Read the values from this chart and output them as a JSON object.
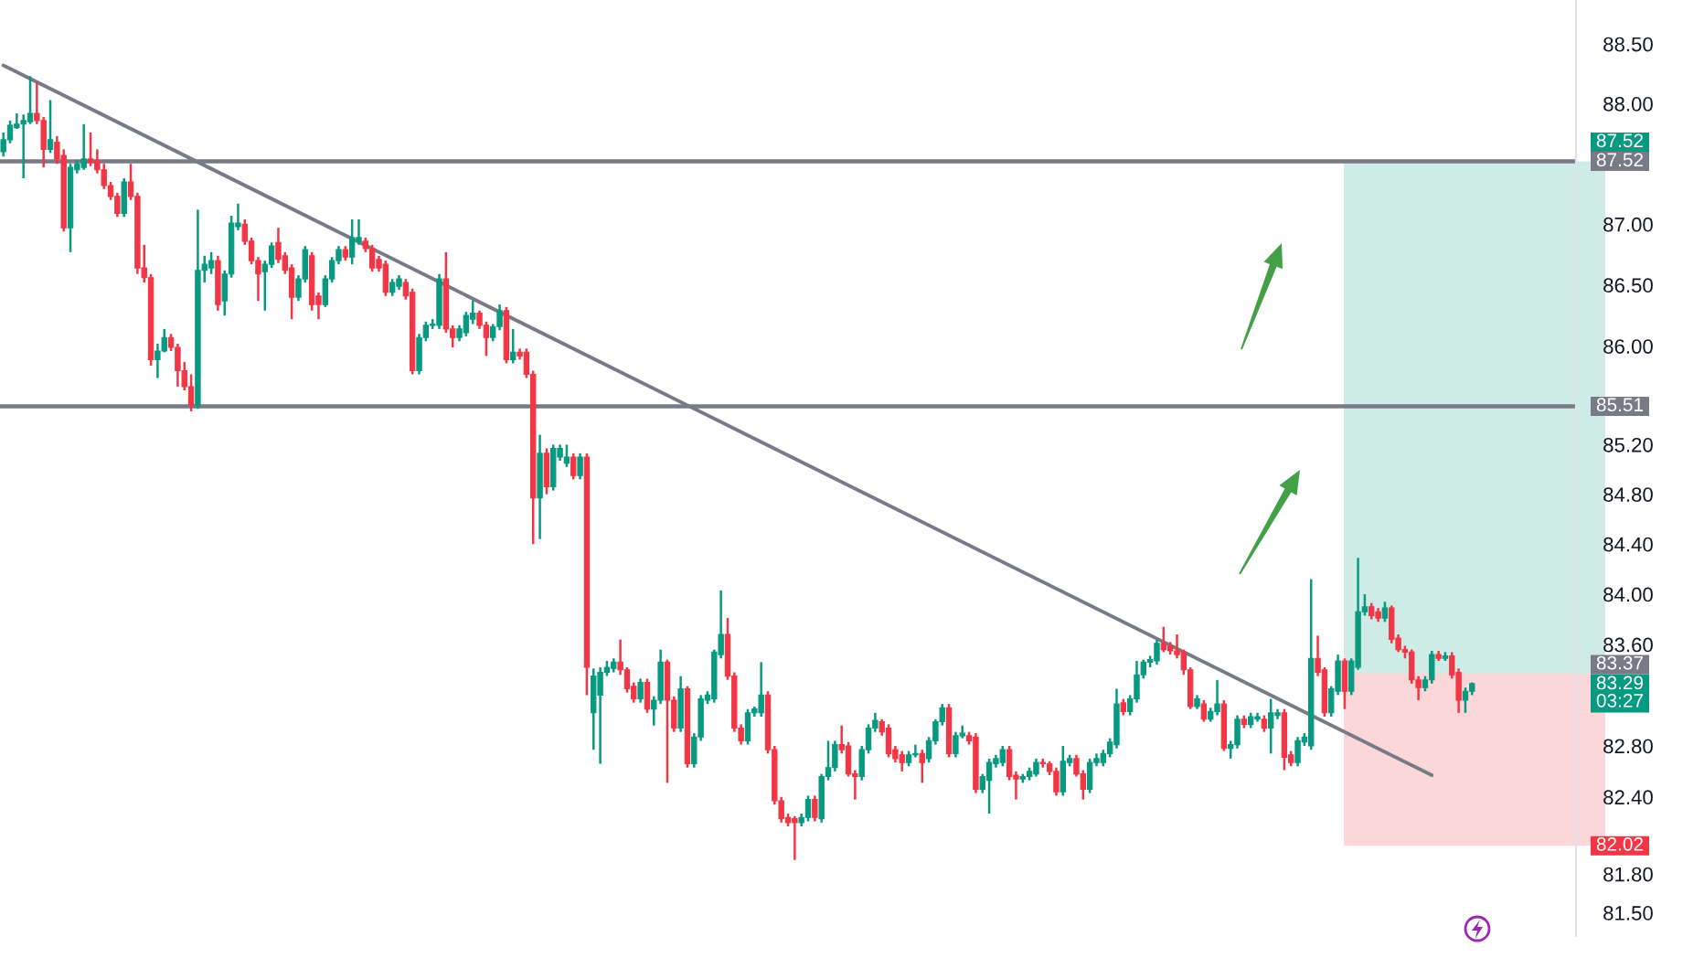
{
  "chart_data": {
    "type": "candlestick",
    "categories": [
      null,
      null,
      null,
      null,
      null,
      null,
      null,
      null,
      null,
      null,
      null,
      null,
      null,
      null,
      null,
      null,
      null,
      null,
      null,
      null,
      null,
      null,
      null,
      null,
      null,
      null,
      null,
      null,
      null,
      null,
      null,
      null,
      null,
      null,
      null,
      null,
      null,
      null,
      null,
      null,
      null,
      null,
      null,
      null,
      null,
      null,
      null,
      null,
      null,
      null,
      null,
      null,
      null,
      null,
      null,
      null,
      null,
      null,
      null,
      null,
      null,
      null,
      null,
      null,
      null,
      null,
      null,
      null,
      null,
      null,
      null,
      null,
      null,
      null,
      null,
      null,
      null,
      null,
      null,
      null,
      null,
      null,
      null,
      null,
      null,
      null,
      null,
      null,
      null,
      null,
      null,
      null,
      null,
      null,
      null,
      null,
      null,
      null,
      null,
      null,
      null,
      null,
      null,
      null,
      null,
      null,
      null,
      null,
      null,
      null,
      null,
      null,
      null,
      null,
      null,
      null,
      null,
      null,
      null,
      null,
      null,
      null,
      null,
      null,
      null,
      null,
      null,
      null,
      null,
      null,
      null,
      null,
      null,
      null,
      null,
      null,
      null,
      null,
      null,
      null,
      null,
      null,
      null,
      null,
      null,
      null,
      null,
      null,
      null,
      null,
      null,
      null,
      null,
      null,
      null,
      null,
      null,
      null,
      null,
      null,
      null,
      null,
      null,
      null,
      null,
      null,
      null,
      null,
      null,
      null,
      null,
      null,
      null,
      null,
      null,
      null,
      null,
      null,
      null,
      null,
      null,
      null,
      null,
      null,
      null,
      null,
      null,
      null,
      null,
      null,
      null,
      null,
      null,
      null,
      null,
      null,
      null,
      null,
      null,
      null,
      null,
      null,
      null,
      null,
      null,
      null,
      null,
      null,
      null,
      null,
      null,
      null,
      null,
      null,
      null,
      null,
      null,
      null,
      null,
      null,
      null,
      null,
      null,
      null,
      null,
      null,
      null,
      null,
      null,
      null,
      null,
      null,
      null,
      null,
      null
    ],
    "ohlc": [
      [
        87.6,
        87.76,
        87.56,
        87.7
      ],
      [
        87.7,
        87.86,
        87.67,
        87.82
      ],
      [
        87.8,
        87.92,
        87.79,
        87.83
      ],
      [
        87.83,
        87.91,
        87.38,
        87.86
      ],
      [
        87.85,
        88.23,
        87.83,
        87.92
      ],
      [
        87.92,
        88.18,
        87.83,
        87.86
      ],
      [
        87.86,
        87.89,
        87.47,
        87.62
      ],
      [
        87.62,
        88.03,
        87.59,
        87.7
      ],
      [
        87.68,
        87.73,
        87.5,
        87.54
      ],
      [
        87.57,
        87.62,
        86.94,
        86.97
      ],
      [
        86.97,
        87.5,
        86.77,
        87.47
      ],
      [
        87.45,
        87.53,
        87.42,
        87.5
      ],
      [
        87.47,
        87.83,
        87.45,
        87.54
      ],
      [
        87.54,
        87.76,
        87.48,
        87.51
      ],
      [
        87.53,
        87.62,
        87.42,
        87.45
      ],
      [
        87.45,
        87.5,
        87.29,
        87.32
      ],
      [
        87.32,
        87.35,
        87.2,
        87.23
      ],
      [
        87.23,
        87.26,
        87.06,
        87.09
      ],
      [
        87.09,
        87.38,
        87.06,
        87.35
      ],
      [
        87.35,
        87.5,
        87.2,
        87.23
      ],
      [
        87.23,
        87.26,
        86.59,
        86.64
      ],
      [
        86.64,
        86.83,
        86.52,
        86.56
      ],
      [
        86.56,
        86.59,
        85.84,
        85.89
      ],
      [
        85.89,
        86.02,
        85.74,
        85.96
      ],
      [
        85.96,
        86.14,
        85.95,
        86.07
      ],
      [
        86.07,
        86.1,
        85.96,
        85.99
      ],
      [
        85.99,
        86.02,
        85.67,
        85.8
      ],
      [
        85.8,
        85.87,
        85.64,
        85.67
      ],
      [
        85.67,
        85.77,
        85.47,
        85.52
      ],
      [
        85.52,
        87.12,
        85.49,
        86.62
      ],
      [
        86.62,
        86.74,
        86.52,
        86.67
      ],
      [
        86.64,
        86.77,
        86.59,
        86.7
      ],
      [
        86.7,
        86.74,
        86.29,
        86.34
      ],
      [
        86.37,
        86.62,
        86.25,
        86.59
      ],
      [
        86.59,
        87.07,
        86.56,
        87.01
      ],
      [
        86.98,
        87.17,
        86.95,
        87.01
      ],
      [
        87.0,
        87.04,
        86.83,
        86.86
      ],
      [
        86.86,
        86.89,
        86.67,
        86.7
      ],
      [
        86.7,
        86.73,
        86.37,
        86.59
      ],
      [
        86.61,
        86.7,
        86.29,
        86.67
      ],
      [
        86.67,
        86.85,
        86.64,
        86.82
      ],
      [
        86.85,
        86.97,
        86.68,
        86.71
      ],
      [
        86.74,
        86.77,
        86.59,
        86.62
      ],
      [
        86.64,
        86.67,
        86.22,
        86.4
      ],
      [
        86.4,
        86.58,
        86.37,
        86.55
      ],
      [
        86.55,
        86.82,
        86.52,
        86.79
      ],
      [
        86.74,
        86.77,
        86.29,
        86.34
      ],
      [
        86.41,
        86.44,
        86.22,
        86.34
      ],
      [
        86.34,
        86.58,
        86.32,
        86.55
      ],
      [
        86.55,
        86.73,
        86.52,
        86.7
      ],
      [
        86.7,
        86.82,
        86.67,
        86.79
      ],
      [
        86.79,
        86.82,
        86.7,
        86.73
      ],
      [
        86.73,
        87.04,
        86.67,
        86.89
      ],
      [
        86.86,
        87.04,
        86.83,
        86.89
      ],
      [
        86.86,
        86.89,
        86.77,
        86.8
      ],
      [
        86.8,
        86.83,
        86.61,
        86.64
      ],
      [
        86.71,
        86.74,
        86.61,
        86.64
      ],
      [
        86.67,
        86.7,
        86.41,
        86.44
      ],
      [
        86.44,
        86.55,
        86.41,
        86.52
      ],
      [
        86.49,
        86.58,
        86.46,
        86.55
      ],
      [
        86.52,
        86.55,
        86.38,
        86.41
      ],
      [
        86.44,
        86.47,
        85.77,
        85.8
      ],
      [
        85.8,
        86.1,
        85.77,
        86.07
      ],
      [
        86.07,
        86.2,
        86.04,
        86.17
      ],
      [
        86.17,
        86.22,
        86.14,
        86.18
      ],
      [
        86.17,
        86.59,
        86.14,
        86.55
      ],
      [
        86.55,
        86.77,
        86.11,
        86.14
      ],
      [
        86.14,
        86.17,
        85.99,
        86.07
      ],
      [
        86.07,
        86.17,
        86.04,
        86.14
      ],
      [
        86.11,
        86.28,
        86.08,
        86.25
      ],
      [
        86.22,
        86.37,
        86.18,
        86.27
      ],
      [
        86.27,
        86.29,
        86.14,
        86.17
      ],
      [
        86.17,
        86.2,
        85.92,
        86.07
      ],
      [
        86.07,
        86.18,
        86.04,
        86.16
      ],
      [
        86.16,
        86.34,
        86.13,
        86.29
      ],
      [
        86.29,
        86.32,
        85.86,
        85.89
      ],
      [
        85.89,
        86.14,
        85.86,
        85.95
      ],
      [
        85.95,
        85.98,
        85.89,
        85.92
      ],
      [
        85.95,
        85.98,
        85.74,
        85.77
      ],
      [
        85.77,
        85.8,
        84.4,
        84.77
      ],
      [
        84.77,
        85.28,
        84.44,
        85.13
      ],
      [
        85.13,
        85.17,
        84.8,
        84.86
      ],
      [
        84.86,
        85.2,
        84.83,
        85.17
      ],
      [
        85.1,
        85.2,
        85.07,
        85.17
      ],
      [
        85.05,
        85.2,
        85.02,
        85.1
      ],
      [
        85.1,
        85.13,
        84.92,
        84.95
      ],
      [
        84.95,
        85.13,
        84.92,
        85.1
      ],
      [
        85.1,
        85.13,
        83.2,
        83.42
      ],
      [
        83.06,
        83.41,
        82.77,
        83.35
      ],
      [
        83.2,
        83.42,
        82.66,
        83.38
      ],
      [
        83.38,
        83.47,
        83.35,
        83.42
      ],
      [
        83.41,
        83.49,
        83.38,
        83.46
      ],
      [
        83.46,
        83.64,
        83.36,
        83.4
      ],
      [
        83.4,
        83.42,
        83.22,
        83.25
      ],
      [
        83.27,
        83.3,
        83.14,
        83.17
      ],
      [
        83.17,
        83.33,
        83.14,
        83.3
      ],
      [
        83.3,
        83.33,
        83.06,
        83.09
      ],
      [
        83.09,
        83.19,
        82.96,
        83.16
      ],
      [
        83.16,
        83.56,
        83.13,
        83.46
      ],
      [
        83.46,
        83.48,
        82.51,
        83.16
      ],
      [
        83.16,
        83.19,
        82.91,
        82.94
      ],
      [
        82.94,
        83.35,
        82.91,
        83.25
      ],
      [
        83.25,
        83.27,
        82.63,
        82.66
      ],
      [
        82.66,
        82.9,
        82.63,
        82.87
      ],
      [
        82.87,
        83.2,
        82.84,
        83.17
      ],
      [
        83.16,
        83.23,
        83.13,
        83.2
      ],
      [
        83.17,
        83.56,
        83.14,
        83.54
      ],
      [
        83.52,
        84.03,
        83.49,
        83.68
      ],
      [
        83.68,
        83.81,
        83.32,
        83.35
      ],
      [
        83.35,
        83.38,
        82.91,
        82.94
      ],
      [
        82.94,
        82.97,
        82.81,
        82.84
      ],
      [
        82.84,
        83.09,
        82.81,
        83.06
      ],
      [
        83.06,
        83.11,
        83.03,
        83.09
      ],
      [
        83.06,
        83.46,
        83.03,
        83.2
      ],
      [
        83.2,
        83.23,
        82.74,
        82.77
      ],
      [
        82.77,
        82.8,
        82.34,
        82.37
      ],
      [
        82.37,
        82.4,
        82.2,
        82.23
      ],
      [
        82.24,
        82.27,
        82.17,
        82.2
      ],
      [
        82.23,
        82.25,
        81.91,
        82.2
      ],
      [
        82.2,
        82.27,
        82.17,
        82.24
      ],
      [
        82.24,
        82.41,
        82.21,
        82.38
      ],
      [
        82.38,
        82.41,
        82.21,
        82.24
      ],
      [
        82.23,
        82.58,
        82.2,
        82.56
      ],
      [
        82.56,
        82.84,
        82.53,
        82.63
      ],
      [
        82.63,
        82.84,
        82.6,
        82.81
      ],
      [
        82.81,
        82.96,
        82.74,
        82.77
      ],
      [
        82.8,
        82.83,
        82.56,
        82.58
      ],
      [
        82.58,
        82.61,
        82.38,
        82.56
      ],
      [
        82.56,
        82.8,
        82.53,
        82.77
      ],
      [
        82.77,
        82.97,
        82.74,
        82.94
      ],
      [
        82.94,
        83.06,
        82.91,
        83.0
      ],
      [
        82.99,
        83.01,
        82.88,
        82.91
      ],
      [
        82.94,
        82.97,
        82.71,
        82.74
      ],
      [
        82.77,
        82.8,
        82.67,
        82.7
      ],
      [
        82.73,
        82.76,
        82.6,
        82.67
      ],
      [
        82.67,
        82.76,
        82.64,
        82.73
      ],
      [
        82.73,
        82.81,
        82.71,
        82.74
      ],
      [
        82.74,
        82.77,
        82.51,
        82.67
      ],
      [
        82.7,
        82.87,
        82.67,
        82.84
      ],
      [
        82.84,
        83.01,
        82.81,
        82.99
      ],
      [
        82.99,
        83.13,
        82.96,
        83.1
      ],
      [
        83.1,
        83.13,
        82.71,
        82.74
      ],
      [
        82.74,
        82.91,
        82.71,
        82.88
      ],
      [
        82.88,
        82.96,
        82.86,
        82.9
      ],
      [
        82.88,
        82.91,
        82.81,
        82.84
      ],
      [
        82.87,
        82.9,
        82.43,
        82.46
      ],
      [
        82.46,
        82.58,
        82.43,
        82.56
      ],
      [
        82.53,
        82.7,
        82.27,
        82.67
      ],
      [
        82.66,
        82.73,
        82.63,
        82.7
      ],
      [
        82.67,
        82.8,
        82.64,
        82.77
      ],
      [
        82.77,
        82.8,
        82.53,
        82.56
      ],
      [
        82.57,
        82.6,
        82.38,
        82.54
      ],
      [
        82.54,
        82.58,
        82.51,
        82.56
      ],
      [
        82.56,
        82.63,
        82.53,
        82.6
      ],
      [
        82.58,
        82.7,
        82.56,
        82.67
      ],
      [
        82.67,
        82.7,
        82.63,
        82.66
      ],
      [
        82.66,
        82.68,
        82.57,
        82.6
      ],
      [
        82.6,
        82.63,
        82.41,
        82.44
      ],
      [
        82.44,
        82.8,
        82.41,
        82.68
      ],
      [
        82.67,
        82.73,
        82.64,
        82.7
      ],
      [
        82.7,
        82.73,
        82.56,
        82.58
      ],
      [
        82.58,
        82.61,
        82.38,
        82.46
      ],
      [
        82.46,
        82.7,
        82.43,
        82.67
      ],
      [
        82.67,
        82.74,
        82.64,
        82.7
      ],
      [
        82.67,
        82.77,
        82.64,
        82.74
      ],
      [
        82.74,
        82.86,
        82.71,
        82.83
      ],
      [
        82.81,
        83.25,
        82.78,
        83.13
      ],
      [
        83.14,
        83.17,
        83.04,
        83.07
      ],
      [
        83.07,
        83.2,
        83.04,
        83.17
      ],
      [
        83.17,
        83.47,
        83.14,
        83.36
      ],
      [
        83.36,
        83.48,
        83.33,
        83.46
      ],
      [
        83.46,
        83.51,
        83.42,
        83.48
      ],
      [
        83.47,
        83.64,
        83.44,
        83.61
      ],
      [
        83.61,
        83.74,
        83.54,
        83.56
      ],
      [
        83.59,
        83.62,
        83.52,
        83.55
      ],
      [
        83.55,
        83.68,
        83.49,
        83.52
      ],
      [
        83.54,
        83.56,
        83.36,
        83.4
      ],
      [
        83.4,
        83.42,
        83.09,
        83.11
      ],
      [
        83.11,
        83.2,
        83.09,
        83.17
      ],
      [
        83.13,
        83.16,
        82.99,
        83.01
      ],
      [
        83.01,
        83.1,
        82.99,
        83.07
      ],
      [
        83.07,
        83.32,
        83.04,
        83.13
      ],
      [
        83.13,
        83.16,
        82.76,
        82.78
      ],
      [
        82.78,
        82.84,
        82.7,
        82.81
      ],
      [
        82.81,
        83.04,
        82.78,
        83.01
      ],
      [
        83.01,
        83.04,
        82.94,
        82.97
      ],
      [
        82.97,
        83.06,
        82.94,
        83.03
      ],
      [
        83.01,
        83.06,
        82.99,
        83.03
      ],
      [
        83.01,
        83.04,
        82.91,
        82.94
      ],
      [
        82.94,
        83.17,
        82.74,
        83.06
      ],
      [
        83.04,
        83.09,
        83.01,
        83.06
      ],
      [
        83.06,
        83.09,
        82.61,
        82.71
      ],
      [
        82.73,
        82.76,
        82.64,
        82.67
      ],
      [
        82.67,
        82.87,
        82.64,
        82.84
      ],
      [
        82.83,
        82.9,
        82.8,
        82.87
      ],
      [
        82.8,
        84.12,
        82.77,
        83.49
      ],
      [
        83.49,
        83.67,
        83.35,
        83.38
      ],
      [
        83.4,
        83.42,
        83.03,
        83.06
      ],
      [
        83.06,
        83.27,
        83.03,
        83.25
      ],
      [
        83.23,
        83.52,
        83.2,
        83.47
      ],
      [
        83.47,
        83.49,
        83.09,
        83.23
      ],
      [
        83.23,
        83.49,
        83.2,
        83.47
      ],
      [
        83.42,
        84.29,
        83.4,
        83.86
      ],
      [
        83.86,
        84.0,
        83.83,
        83.9
      ],
      [
        83.9,
        83.93,
        83.8,
        83.83
      ],
      [
        83.86,
        83.89,
        83.78,
        83.81
      ],
      [
        83.81,
        83.94,
        83.78,
        83.89
      ],
      [
        83.89,
        83.91,
        83.61,
        83.64
      ],
      [
        83.65,
        83.68,
        83.54,
        83.56
      ],
      [
        83.56,
        83.59,
        83.49,
        83.54
      ],
      [
        83.54,
        83.56,
        83.29,
        83.32
      ],
      [
        83.32,
        83.35,
        83.16,
        83.26
      ],
      [
        83.26,
        83.35,
        83.23,
        83.32
      ],
      [
        83.32,
        83.55,
        83.29,
        83.52
      ],
      [
        83.52,
        83.55,
        83.47,
        83.49
      ],
      [
        83.49,
        83.54,
        83.47,
        83.51
      ],
      [
        83.51,
        83.54,
        83.33,
        83.36
      ],
      [
        83.38,
        83.41,
        83.06,
        83.16
      ],
      [
        83.16,
        83.26,
        83.06,
        83.23
      ],
      [
        83.23,
        83.3,
        83.2,
        83.29
      ],
      null,
      null,
      null,
      null,
      null,
      null,
      null,
      null,
      null,
      null,
      null,
      null,
      null,
      null,
      null
    ],
    "colors": [
      "#089981",
      "#089981",
      "#089981",
      "#089981",
      "#089981",
      "#f23645",
      "#f23645",
      "#089981",
      "#f23645",
      "#f23645",
      "#089981",
      "#089981",
      "#089981",
      "#f23645",
      "#f23645",
      "#f23645",
      "#f23645",
      "#f23645",
      "#089981",
      "#f23645",
      "#f23645",
      "#f23645",
      "#f23645",
      "#089981",
      "#089981",
      "#f23645",
      "#f23645",
      "#f23645",
      "#f23645",
      "#089981",
      "#089981",
      "#089981",
      "#f23645",
      "#089981",
      "#089981",
      "#089981",
      "#f23645",
      "#f23645",
      "#f23645",
      "#089981",
      "#089981",
      "#f23645",
      "#f23645",
      "#f23645",
      "#089981",
      "#089981",
      "#f23645",
      "#f23645",
      "#089981",
      "#089981",
      "#089981",
      "#f23645",
      "#089981",
      "#089981",
      "#f23645",
      "#f23645",
      "#f23645",
      "#f23645",
      "#089981",
      "#089981",
      "#f23645",
      "#f23645",
      "#089981",
      "#089981",
      "#089981",
      "#089981",
      "#f23645",
      "#f23645",
      "#089981",
      "#089981",
      "#089981",
      "#f23645",
      "#f23645",
      "#089981",
      "#089981",
      "#f23645",
      "#089981",
      "#f23645",
      "#f23645",
      "#f23645",
      "#089981",
      "#f23645",
      "#089981",
      "#089981",
      "#089981",
      "#f23645",
      "#089981",
      "#f23645",
      "#089981",
      "#089981",
      "#089981",
      "#089981",
      "#f23645",
      "#f23645",
      "#f23645",
      "#089981",
      "#f23645",
      "#089981",
      "#089981",
      "#f23645",
      "#f23645",
      "#089981",
      "#f23645",
      "#089981",
      "#089981",
      "#089981",
      "#089981",
      "#089981",
      "#f23645",
      "#f23645",
      "#f23645",
      "#089981",
      "#089981",
      "#089981",
      "#f23645",
      "#f23645",
      "#f23645",
      "#f23645",
      "#f23645",
      "#089981",
      "#089981",
      "#f23645",
      "#089981",
      "#089981",
      "#089981",
      "#f23645",
      "#f23645",
      "#f23645",
      "#089981",
      "#089981",
      "#089981",
      "#f23645",
      "#f23645",
      "#f23645",
      "#f23645",
      "#089981",
      "#089981",
      "#f23645",
      "#089981",
      "#089981",
      "#089981",
      "#f23645",
      "#089981",
      "#089981",
      "#f23645",
      "#f23645",
      "#089981",
      "#089981",
      "#089981",
      "#089981",
      "#f23645",
      "#f23645",
      "#089981",
      "#089981",
      "#089981",
      "#f23645",
      "#f23645",
      "#f23645",
      "#089981",
      "#089981",
      "#f23645",
      "#f23645",
      "#089981",
      "#089981",
      "#089981",
      "#089981",
      "#089981",
      "#f23645",
      "#089981",
      "#089981",
      "#089981",
      "#089981",
      "#089981",
      "#f23645",
      "#f23645",
      "#f23645",
      "#f23645",
      "#f23645",
      "#089981",
      "#f23645",
      "#089981",
      "#089981",
      "#f23645",
      "#089981",
      "#089981",
      "#f23645",
      "#089981",
      "#089981",
      "#f23645",
      "#089981",
      "#089981",
      "#f23645",
      "#f23645",
      "#089981",
      "#089981",
      "#089981",
      "#f23645",
      "#f23645",
      "#089981",
      "#089981",
      "#f23645",
      "#089981",
      "#089981",
      "#089981",
      "#f23645",
      "#f23645",
      "#089981",
      "#f23645",
      "#f23645",
      "#f23645",
      "#f23645",
      "#f23645",
      "#089981",
      "#089981",
      "#f23645",
      "#089981",
      "#f23645",
      "#f23645",
      "#089981",
      "#089981",
      null,
      null,
      null,
      null,
      null,
      null,
      null,
      null,
      null,
      null,
      null,
      null,
      null,
      null,
      null
    ],
    "series": [
      {
        "type": "line",
        "color": "#787b86",
        "values": [
          88.32,
          null,
          null,
          null,
          null,
          null,
          null,
          null,
          null,
          null,
          null,
          null,
          null,
          null,
          null,
          null,
          null,
          null,
          null,
          null,
          null,
          null,
          null,
          null,
          null,
          null,
          null,
          null,
          null,
          null,
          null,
          null,
          null,
          null,
          null,
          null,
          null,
          null,
          null,
          null,
          null,
          null,
          null,
          null,
          null,
          null,
          null,
          null,
          null,
          null,
          null,
          null,
          null,
          null,
          null,
          null,
          null,
          null,
          null,
          null,
          null,
          null,
          null,
          null,
          null,
          null,
          null,
          null,
          null,
          null,
          null,
          null,
          null,
          null,
          null,
          null,
          null,
          null,
          null,
          null,
          null,
          null,
          null,
          null,
          null,
          null,
          null,
          null,
          null,
          null,
          null,
          null,
          null,
          null,
          null,
          null,
          null,
          null,
          null,
          null,
          null,
          null,
          null,
          null,
          null,
          null,
          null,
          null,
          null,
          null,
          null,
          null,
          null,
          null,
          null,
          null,
          null,
          null,
          null,
          null,
          null,
          null,
          null,
          null,
          null,
          null,
          null,
          null,
          null,
          null,
          null,
          null,
          null,
          null,
          null,
          null,
          null,
          null,
          null,
          null,
          null,
          null,
          null,
          null,
          null,
          null,
          null,
          null,
          null,
          null,
          null,
          null,
          null,
          null,
          null,
          null,
          null,
          null,
          null,
          null,
          null,
          null,
          null,
          null,
          null,
          null,
          null,
          null,
          null,
          null,
          null,
          null,
          null,
          null,
          null,
          null,
          null,
          null,
          null,
          null,
          null,
          null,
          null,
          null,
          null,
          null,
          null,
          null,
          null,
          null,
          null,
          null,
          null,
          null,
          null,
          null,
          null,
          null,
          null,
          null,
          null,
          null,
          null,
          null,
          null,
          null,
          null,
          null,
          null,
          null,
          null,
          null,
          null,
          82.57,
          null,
          null,
          null,
          null,
          null,
          null,
          null,
          null,
          null,
          null,
          null,
          null,
          null,
          null,
          null,
          null,
          null,
          null,
          null,
          null,
          null
        ]
      }
    ],
    "log": true,
    "ylim": [
      81.32,
      88.87
    ],
    "yticks": [
      {
        "value": 81.5,
        "label": "81.50"
      },
      {
        "value": 81.8,
        "label": "81.80"
      },
      {
        "value": 82.4,
        "label": "82.40"
      },
      {
        "value": 82.8,
        "label": "82.80"
      },
      {
        "value": 83.6,
        "label": "83.60"
      },
      {
        "value": 84.0,
        "label": "84.00"
      },
      {
        "value": 84.4,
        "label": "84.40"
      },
      {
        "value": 84.8,
        "label": "84.80"
      },
      {
        "value": 85.2,
        "label": "85.20"
      },
      {
        "value": 86.0,
        "label": "86.00"
      },
      {
        "value": 86.5,
        "label": "86.50"
      },
      {
        "value": 87.0,
        "label": "87.00"
      },
      {
        "value": 88.0,
        "label": "88.00"
      },
      {
        "value": 88.5,
        "label": "88.50"
      }
    ],
    "tick_labels": "y",
    "ref_lines": [
      {
        "axis": "y",
        "value": 87.52,
        "label": "87.52",
        "color": "#787b86"
      },
      {
        "axis": "y",
        "value": 85.51,
        "label": "85.51",
        "color": "#787b86"
      }
    ],
    "bands": [
      {
        "axis": "y",
        "from": 83.37,
        "to": 87.52,
        "label": "87.52",
        "color": "#089981"
      },
      {
        "axis": "y",
        "from": 82.02,
        "to": 83.37,
        "label": "82.02",
        "color": "#f23645"
      }
    ],
    "annotations": [
      "83.37",
      "83.29\n03:27"
    ]
  }
}
